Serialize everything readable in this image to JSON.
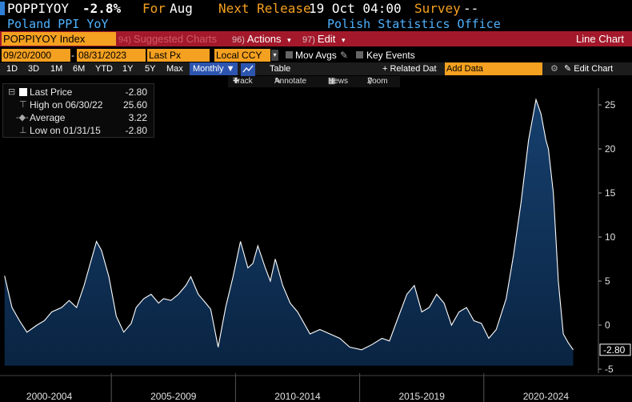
{
  "header": {
    "ticker": "POPPIYOY",
    "change": "-2.8%",
    "period_label": "For",
    "period": "Aug",
    "next_release_label": "Next Release",
    "next_release": "19 Oct 04:00",
    "survey_label": "Survey",
    "survey_value": "--",
    "name": "Poland PPI YoY",
    "source": "Polish Statistics Office"
  },
  "toolbar": {
    "index_field": "POPPIYOY Index",
    "suggested_num": "94)",
    "suggested_label": "Suggested Charts",
    "actions_num": "96)",
    "actions_label": "Actions",
    "edit_num": "97)",
    "edit_label": "Edit",
    "chart_type": "Line Chart"
  },
  "params": {
    "start_date": "09/20/2000",
    "end_date": "08/31/2023",
    "field": "Last Px",
    "currency": "Local CCY",
    "mov_avgs": "Mov Avgs",
    "key_events": "Key Events"
  },
  "periods": [
    "1D",
    "3D",
    "1M",
    "6M",
    "YTD",
    "1Y",
    "5Y",
    "Max"
  ],
  "frequency": "Monthly",
  "table_label": "Table",
  "related_data": "Related Dat",
  "add_data_placeholder": "Add Data",
  "edit_chart": "Edit Chart",
  "chart_tools": {
    "track": "Track",
    "annotate": "Annotate",
    "news": "News",
    "zoom": "Zoom"
  },
  "legend": {
    "last_label": "Last Price",
    "last_value": "-2.80",
    "high_label": "High on 06/30/22",
    "high_value": "25.60",
    "avg_label": "Average",
    "avg_value": "3.22",
    "low_label": "Low on 01/31/15",
    "low_value": "-2.80"
  },
  "colors": {
    "accent_orange": "#f4a020",
    "toolbar_red": "#a3192b",
    "area_fill": "#0f2c4f",
    "line": "#ffffff",
    "header_blue": "#4fb2ff"
  },
  "chart_data": {
    "type": "area",
    "ylim": [
      -5,
      27
    ],
    "yticks": [
      25,
      20,
      15,
      10,
      5,
      0,
      -5
    ],
    "x_labels": [
      "2000-2004",
      "2005-2009",
      "2010-2014",
      "2015-2019",
      "2020-2024"
    ],
    "last_value_label": "-2.80",
    "grid": false,
    "series": [
      {
        "x": [
          2000.7,
          2001.0,
          2001.3,
          2001.6,
          2002.0,
          2002.3,
          2002.6,
          2003.0,
          2003.3,
          2003.6,
          2003.9,
          2004.2,
          2004.4,
          2004.6,
          2004.9,
          2005.2,
          2005.5,
          2005.8,
          2006.0,
          2006.3,
          2006.6,
          2006.9,
          2007.1,
          2007.4,
          2007.7,
          2008.0,
          2008.2,
          2008.5,
          2008.8,
          2009.0,
          2009.3,
          2009.6,
          2009.9,
          2010.2,
          2010.5,
          2010.7,
          2010.9,
          2011.2,
          2011.4,
          2011.6,
          2011.9,
          2012.2,
          2012.5,
          2012.8,
          2013.0,
          2013.4,
          2013.8,
          2014.2,
          2014.6,
          2015.08,
          2015.5,
          2015.9,
          2016.2,
          2016.5,
          2016.9,
          2017.2,
          2017.5,
          2017.8,
          2018.1,
          2018.4,
          2018.7,
          2019.0,
          2019.3,
          2019.6,
          2019.9,
          2020.2,
          2020.5,
          2020.9,
          2021.2,
          2021.5,
          2021.8,
          2022.1,
          2022.3,
          2022.5,
          2022.6,
          2022.8,
          2023.0,
          2023.2,
          2023.4,
          2023.6
        ],
        "y": [
          5.6,
          2.0,
          0.5,
          -0.8,
          0.0,
          0.5,
          1.5,
          2.0,
          2.8,
          2.0,
          4.5,
          7.5,
          9.5,
          8.5,
          5.5,
          1.0,
          -0.8,
          0.2,
          2.0,
          3.0,
          3.5,
          2.5,
          3.0,
          2.8,
          3.5,
          4.5,
          5.5,
          3.5,
          2.5,
          1.8,
          -2.5,
          2.0,
          5.5,
          9.5,
          6.5,
          7.0,
          9.0,
          6.5,
          5.0,
          7.5,
          4.5,
          2.5,
          1.5,
          0.0,
          -1.0,
          -0.5,
          -1.0,
          -1.5,
          -2.5,
          -2.8,
          -2.2,
          -1.5,
          -1.8,
          0.5,
          3.5,
          4.5,
          1.5,
          2.0,
          3.5,
          2.5,
          0.0,
          1.5,
          2.0,
          0.5,
          0.2,
          -1.5,
          -0.5,
          3.0,
          8.0,
          14.0,
          21.0,
          25.6,
          24.0,
          21.0,
          20.0,
          15.0,
          5.0,
          -1.0,
          -2.0,
          -2.8
        ]
      }
    ]
  }
}
